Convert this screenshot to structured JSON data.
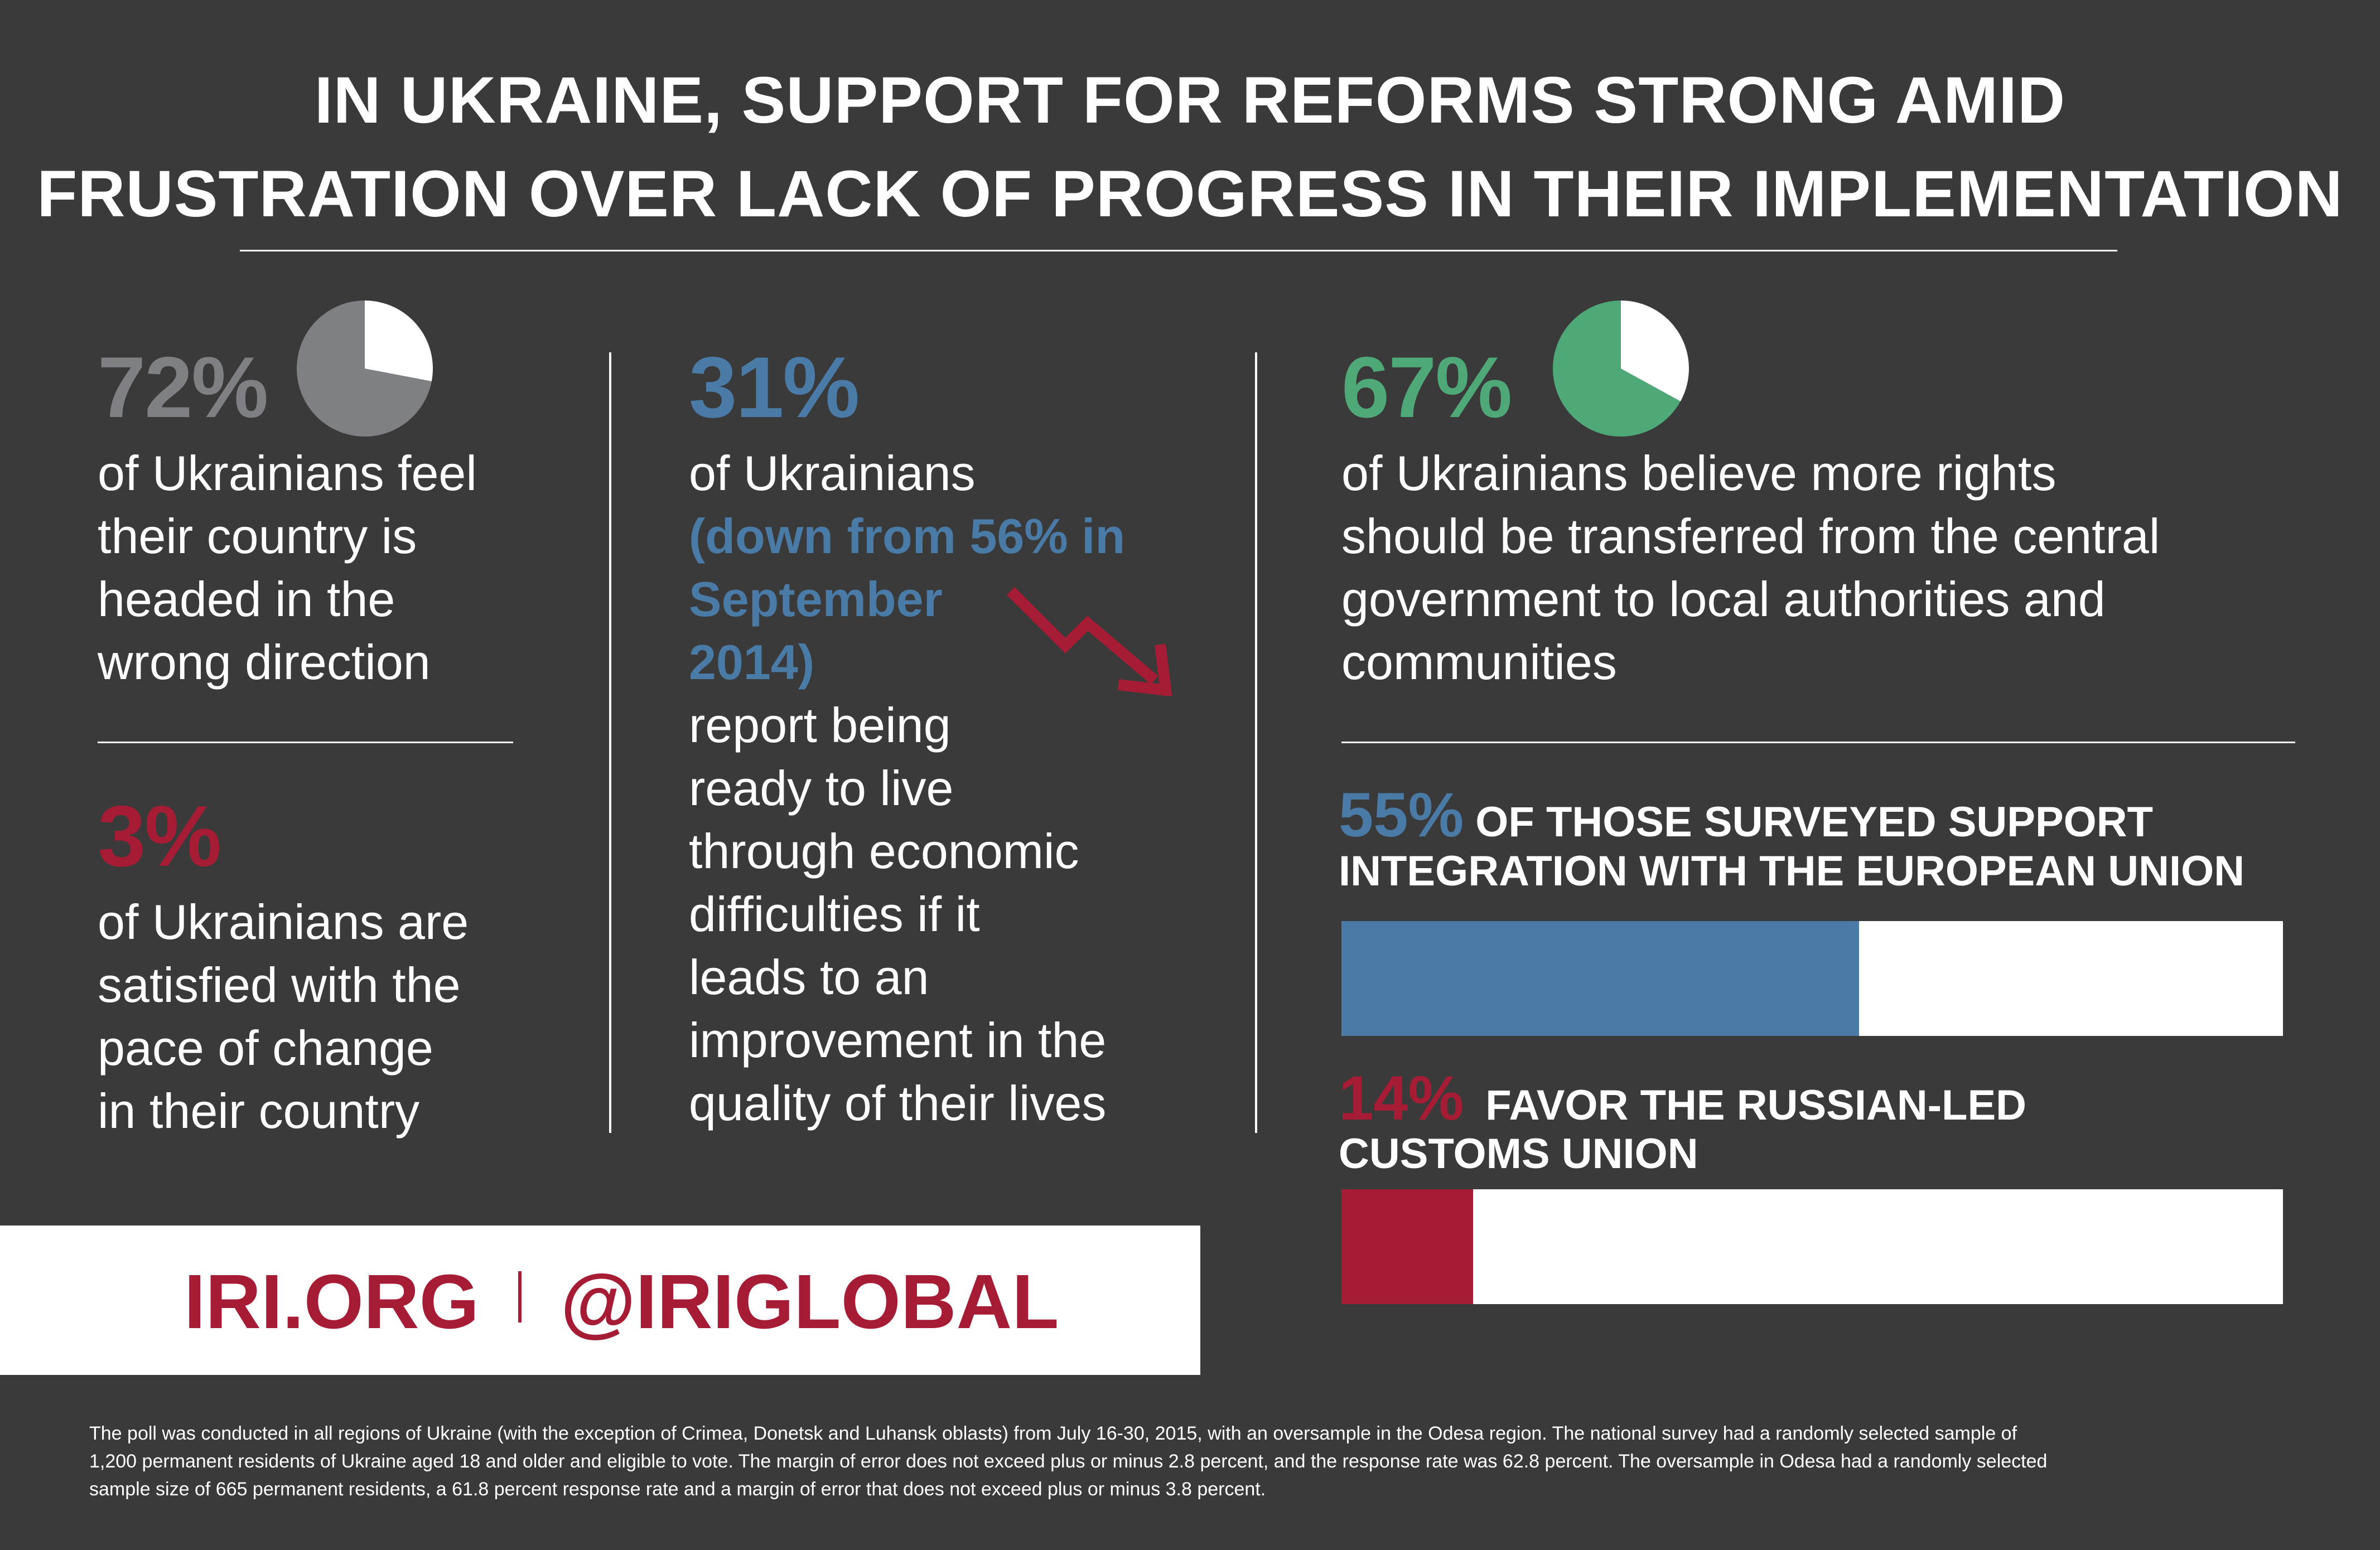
{
  "title": {
    "line1": "IN UKRAINE, SUPPORT FOR REFORMS STRONG AMID",
    "line2": "FRUSTRATION OVER LACK OF PROGRESS IN THEIR IMPLEMENTATION"
  },
  "colors": {
    "background": "#3a3a3b",
    "gray": "#7f8083",
    "red": "#a61c35",
    "blue": "#4a7aa6",
    "green": "#4fa877",
    "white": "#ffffff"
  },
  "stats": {
    "wrong_direction": {
      "pct": "72%",
      "line1": "of Ukrainians feel",
      "line2": "their country is",
      "line3": "headed in the",
      "line4": "wrong direction"
    },
    "satisfied": {
      "pct": "3%",
      "line1": "of Ukrainians are",
      "line2": "satisfied with the",
      "line3": "pace of change",
      "line4": "in their country"
    },
    "hardship": {
      "pct": "31%",
      "line1": "of Ukrainians",
      "hl1": "(down from 56% in",
      "hl2": "September",
      "hl3": "2014)",
      "line5": "report being",
      "line6": "ready to live",
      "line7": "through economic",
      "line8": "difficulties if it",
      "line9": "leads to an",
      "line10": "improvement in the",
      "line11": "quality of their lives"
    },
    "decentralization": {
      "pct": "67%",
      "line1": "of Ukrainians believe more rights",
      "line2": "should be transferred from the central",
      "line3": "government to local authorities and",
      "line4": "communities"
    },
    "eu": {
      "pct": "55%",
      "line1": "OF THOSE SURVEYED SUPPORT",
      "line2": "INTEGRATION WITH THE EUROPEAN UNION"
    },
    "customs": {
      "pct": "14%",
      "line1": "FAVOR THE RUSSIAN-LED",
      "line2": "CUSTOMS UNION"
    }
  },
  "chart_data": [
    {
      "type": "pie",
      "values": [
        72,
        28
      ],
      "colors": [
        "#7f8083",
        "#ffffff"
      ]
    },
    {
      "type": "pie",
      "values": [
        67,
        33
      ],
      "colors": [
        "#4fa877",
        "#ffffff"
      ]
    },
    {
      "type": "bar",
      "values": [
        55
      ],
      "max": 100,
      "colors": [
        "#4a7aa6",
        "#ffffff"
      ]
    },
    {
      "type": "bar",
      "values": [
        14
      ],
      "max": 100,
      "colors": [
        "#a61c35",
        "#ffffff"
      ]
    }
  ],
  "footer": {
    "site": "IRI.ORG",
    "handle": "@IRIGLOBAL"
  },
  "methodology": {
    "line1": "The poll was conducted in all regions of Ukraine (with the exception of Crimea, Donetsk and Luhansk oblasts) from July 16-30, 2015, with an oversample in the Odesa region.  The national survey had a randomly selected sample of",
    "line2": "1,200 permanent residents of Ukraine aged 18 and older and eligible to vote.  The margin of error does not exceed plus or minus 2.8 percent, and the response rate was 62.8 percent.  The oversample in Odesa had a randomly selected",
    "line3": "sample size of 665 permanent residents, a 61.8 percent response rate and a margin of error that does not exceed plus or minus 3.8 percent."
  }
}
